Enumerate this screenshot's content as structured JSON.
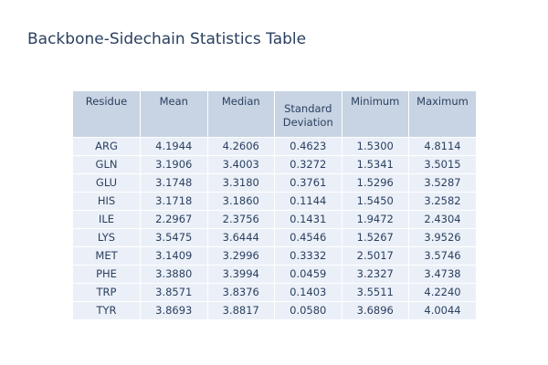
{
  "chart_data": {
    "type": "table",
    "title": "Backbone-Sidechain Statistics Table",
    "columns": [
      "Residue",
      "Mean",
      "Median",
      "Standard Deviation",
      "Minimum",
      "Maximum"
    ],
    "header_fill_color": "#c8d4e3",
    "cell_fill_color": "#ebf0f8",
    "text_color": "#2a3f5f",
    "rows": [
      [
        "ARG",
        "4.1944",
        "4.2606",
        "0.4623",
        "1.5300",
        "4.8114"
      ],
      [
        "GLN",
        "3.1906",
        "3.4003",
        "0.3272",
        "1.5341",
        "3.5015"
      ],
      [
        "GLU",
        "3.1748",
        "3.3180",
        "0.3761",
        "1.5296",
        "3.5287"
      ],
      [
        "HIS",
        "3.1718",
        "3.1860",
        "0.1144",
        "1.5450",
        "3.2582"
      ],
      [
        "ILE",
        "2.2967",
        "2.3756",
        "0.1431",
        "1.9472",
        "2.4304"
      ],
      [
        "LYS",
        "3.5475",
        "3.6444",
        "0.4546",
        "1.5267",
        "3.9526"
      ],
      [
        "MET",
        "3.1409",
        "3.2996",
        "0.3332",
        "2.5017",
        "3.5746"
      ],
      [
        "PHE",
        "3.3880",
        "3.3994",
        "0.0459",
        "3.2327",
        "3.4738"
      ],
      [
        "TRP",
        "3.8571",
        "3.8376",
        "0.1403",
        "3.5511",
        "4.2240"
      ],
      [
        "TYR",
        "3.8693",
        "3.8817",
        "0.0580",
        "3.6896",
        "4.0044"
      ]
    ]
  }
}
